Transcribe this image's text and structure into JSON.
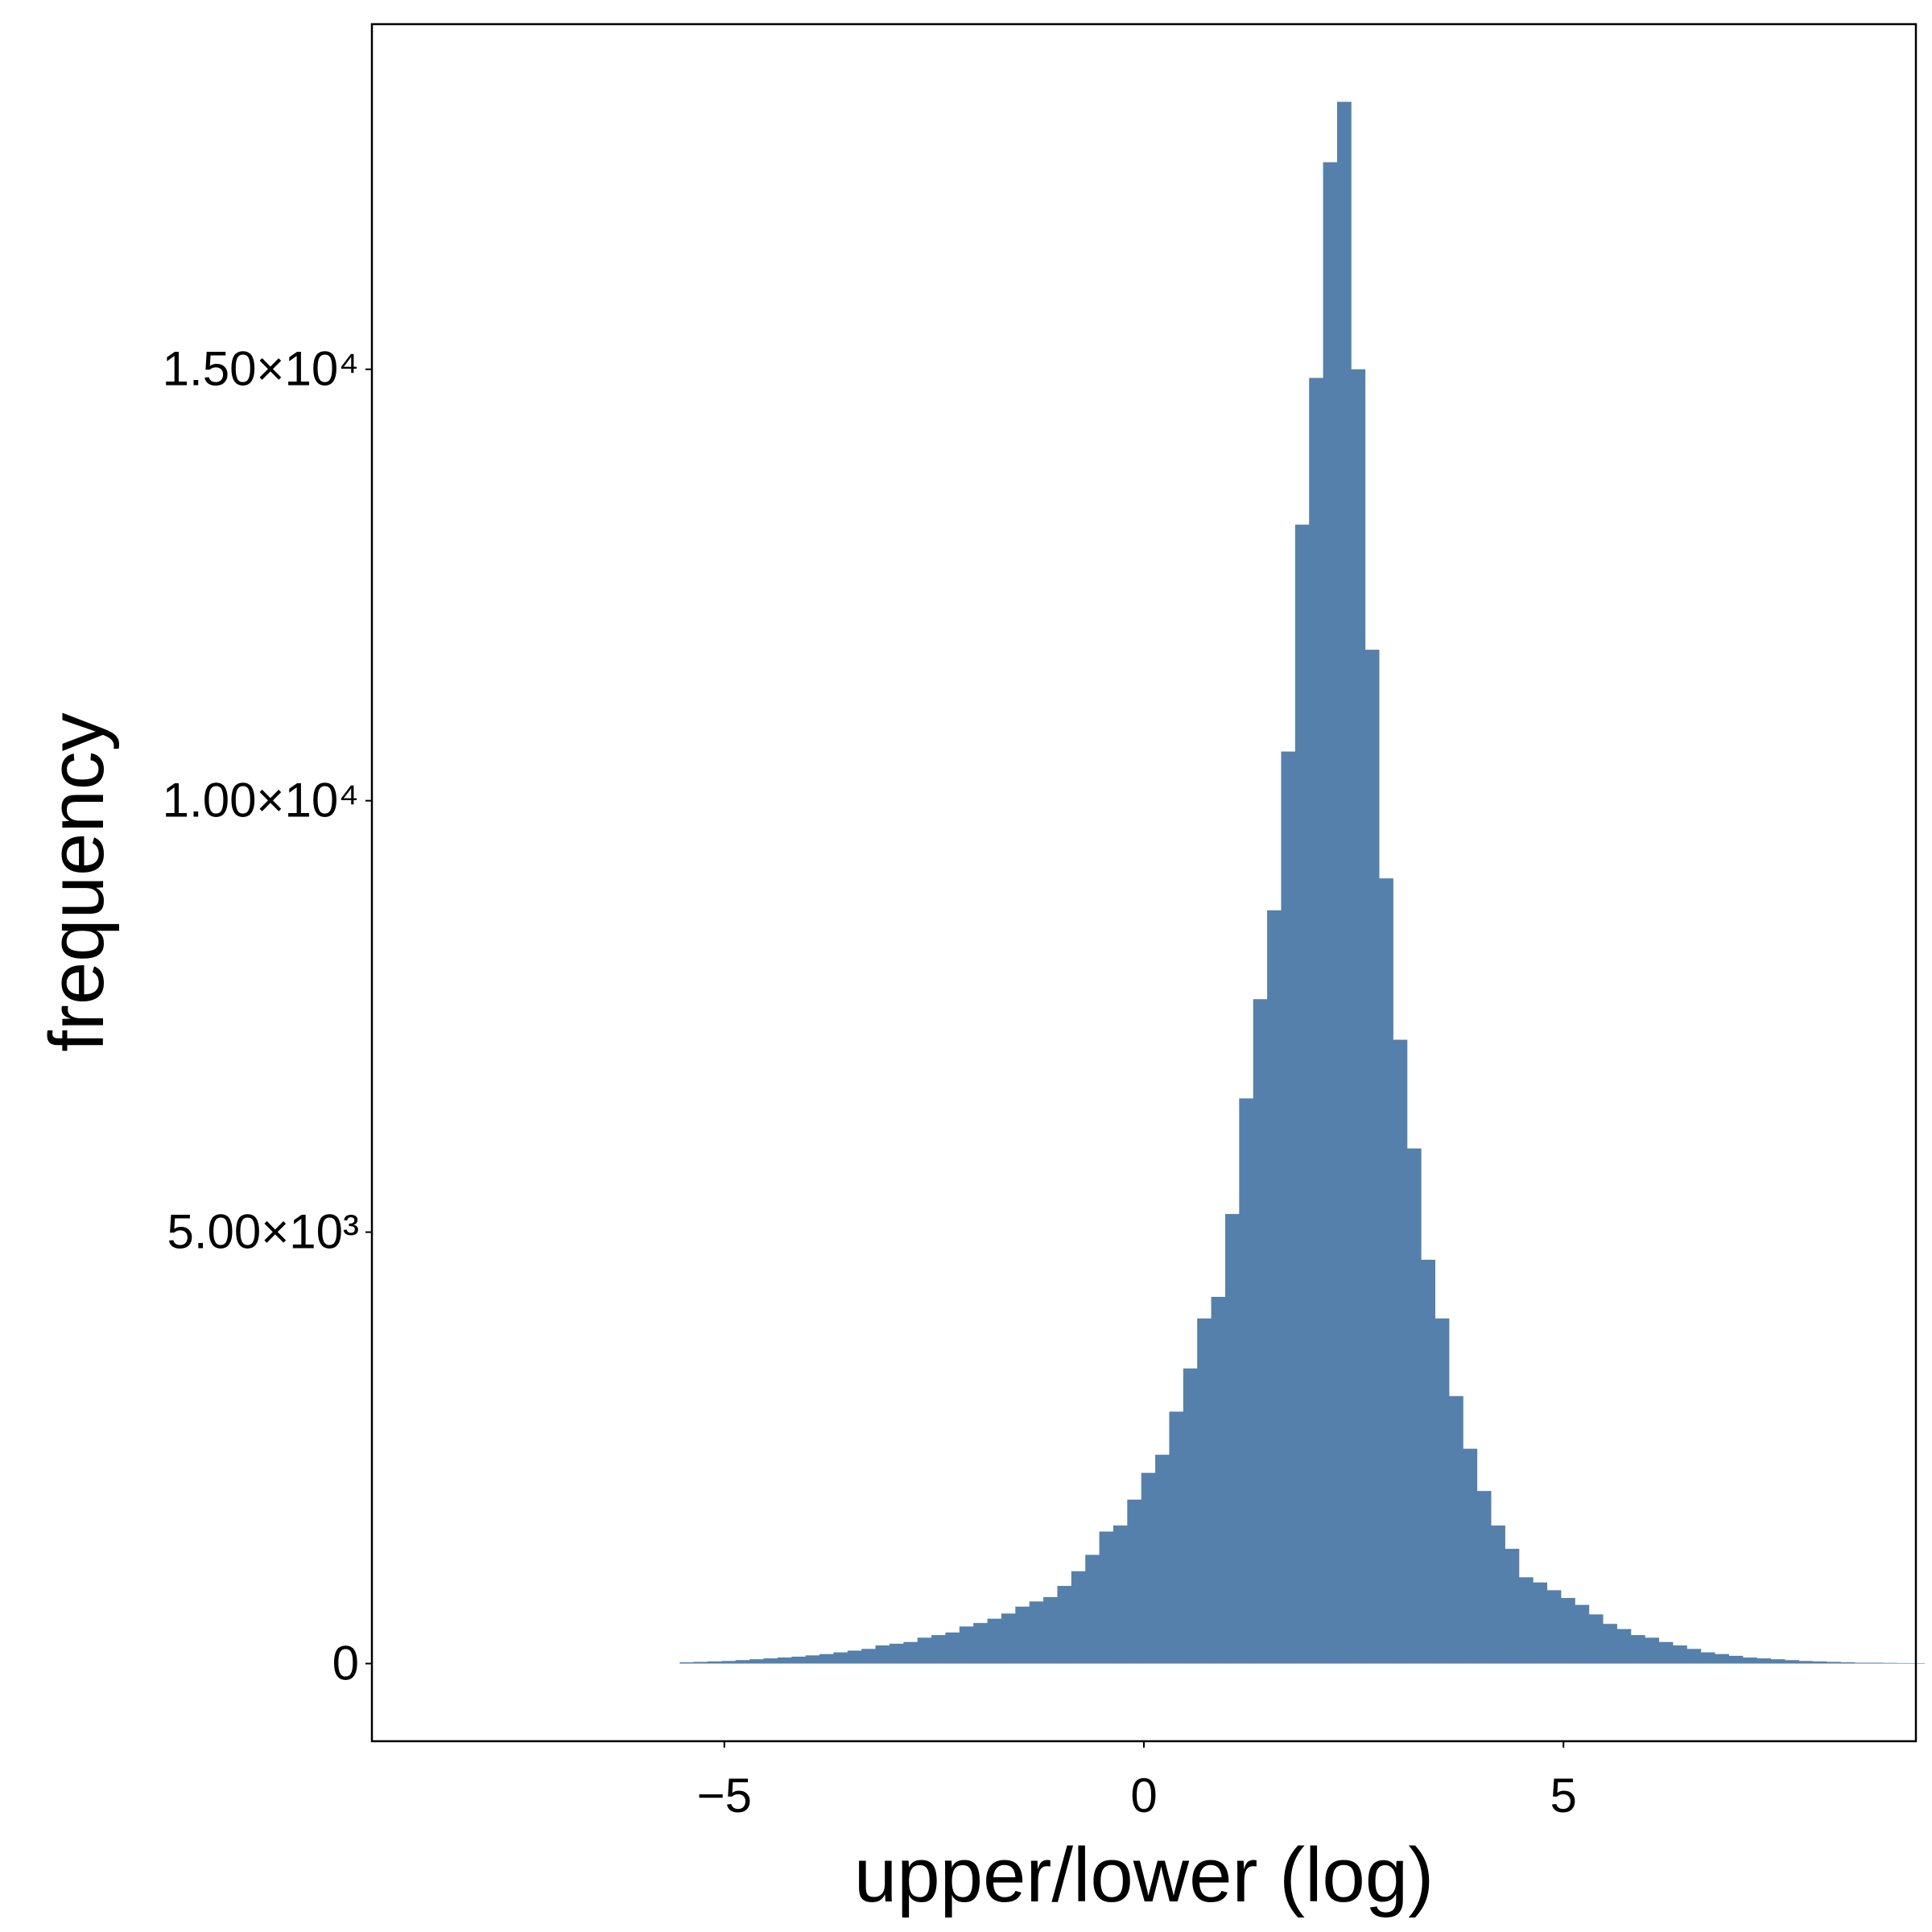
{
  "chart_data": {
    "type": "bar",
    "subtype": "histogram",
    "xlabel": "upper/lower (log)",
    "ylabel": "frequency",
    "xlim": [
      -9.2,
      9.2
    ],
    "ylim": [
      -900,
      19000
    ],
    "x_ticks": [
      {
        "value": -5,
        "label": "−5"
      },
      {
        "value": 0,
        "label": "0"
      },
      {
        "value": 5,
        "label": "5"
      }
    ],
    "y_ticks": [
      {
        "value": 0,
        "label": "0"
      },
      {
        "value": 5000,
        "label": "5.00×10³"
      },
      {
        "value": 10000,
        "label": "1.00×10⁴"
      },
      {
        "value": 15000,
        "label": "1.50×10⁴"
      }
    ],
    "grid": false,
    "bar_color": "#5580ab",
    "bin_start": -8.2,
    "bin_width": 0.1667,
    "values": [
      0,
      0,
      0,
      0,
      0,
      0,
      0,
      0,
      0,
      0,
      0,
      0,
      0,
      0,
      0,
      0,
      15,
      20,
      25,
      30,
      40,
      50,
      60,
      70,
      80,
      95,
      110,
      130,
      150,
      170,
      210,
      230,
      250,
      300,
      330,
      360,
      430,
      470,
      520,
      580,
      660,
      720,
      770,
      900,
      1070,
      1260,
      1530,
      1600,
      1900,
      2210,
      2420,
      2920,
      3420,
      4000,
      4250,
      5210,
      6550,
      7700,
      8730,
      10570,
      13200,
      14900,
      17400,
      18100,
      15000,
      11750,
      9100,
      7230,
      5970,
      4680,
      4000,
      3100,
      2490,
      2000,
      1600,
      1330,
      1000,
      940,
      850,
      760,
      680,
      570,
      460,
      400,
      330,
      300,
      250,
      210,
      170,
      130,
      110,
      90,
      70,
      60,
      50,
      40,
      30,
      25,
      20,
      15,
      10,
      10,
      8,
      6,
      5,
      0,
      0,
      0,
      0,
      0,
      0,
      0,
      0,
      0,
      0,
      0,
      0,
      0,
      0
    ]
  }
}
